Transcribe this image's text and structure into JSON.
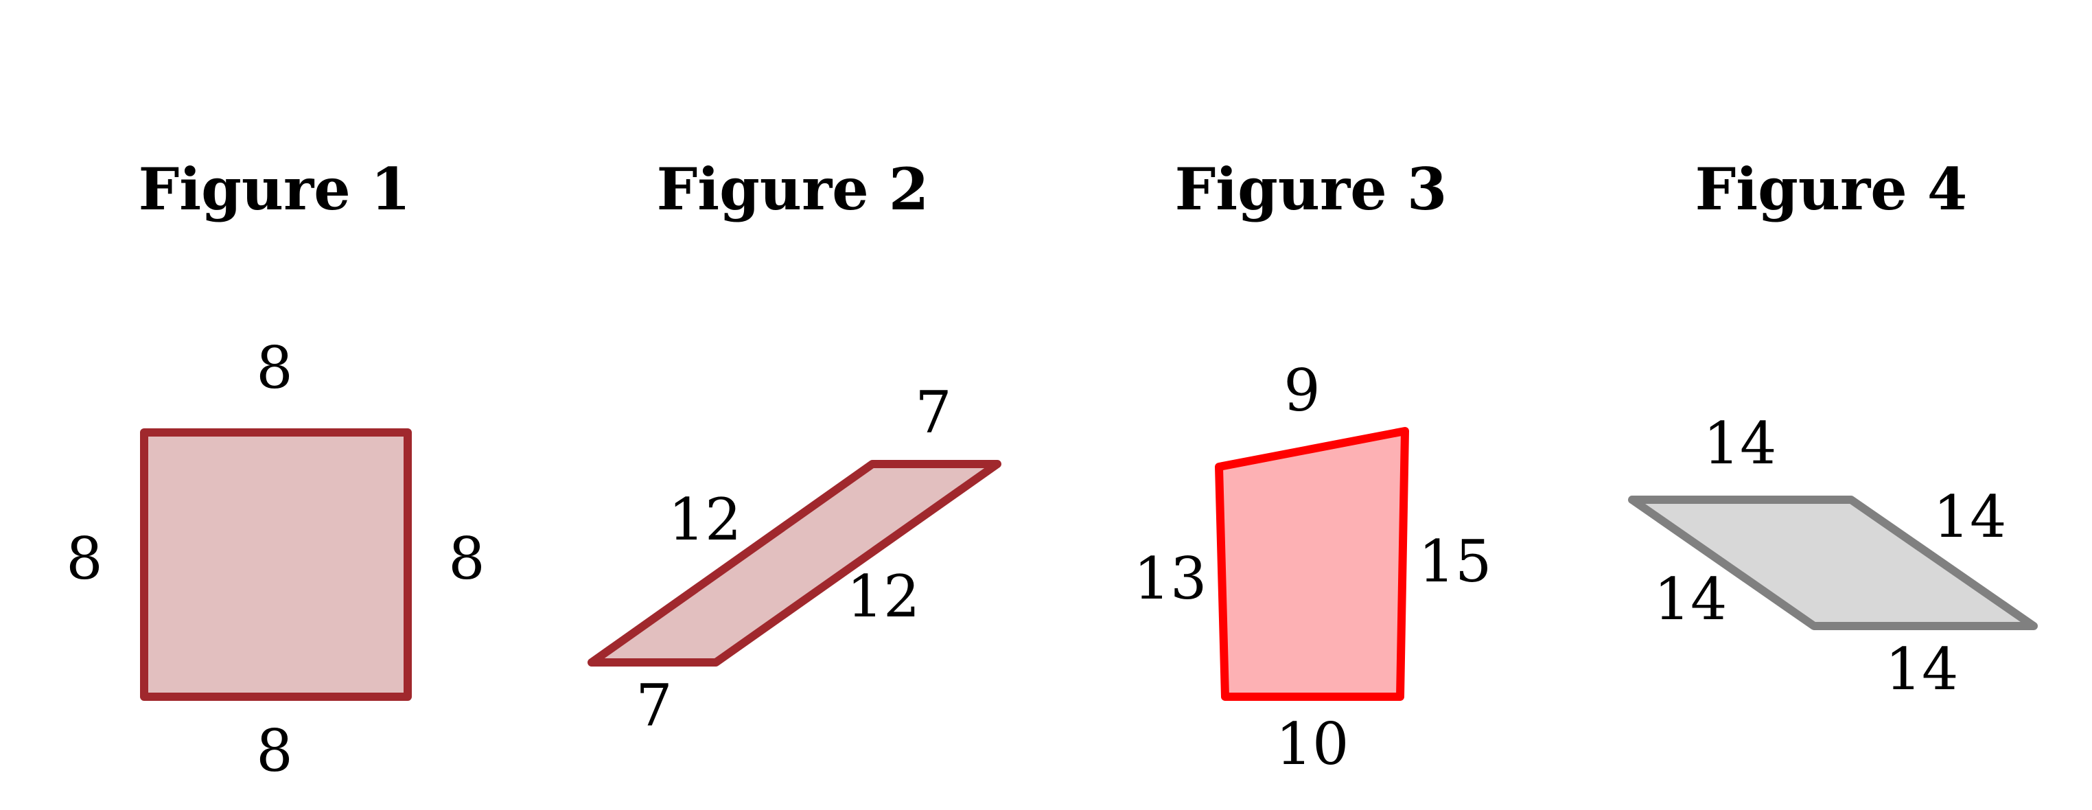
{
  "figures": [
    {
      "title": "Figure 1",
      "style": {
        "fill": "#e2bfbf",
        "stroke": "#a0282d"
      },
      "sides": {
        "top": "8",
        "left": "8",
        "right": "8",
        "bottom": "8"
      }
    },
    {
      "title": "Figure 2",
      "style": {
        "fill": "#e2bfbf",
        "stroke": "#a0282d"
      },
      "sides": {
        "top": "7",
        "upper_left": "12",
        "lower_right": "12",
        "bottom": "7"
      }
    },
    {
      "title": "Figure 3",
      "style": {
        "fill": "#fdb1b4",
        "stroke": "#ff0000"
      },
      "sides": {
        "top": "9",
        "left": "13",
        "right": "15",
        "bottom": "10"
      }
    },
    {
      "title": "Figure 4",
      "style": {
        "fill": "#d8d8d8",
        "stroke": "#808080"
      },
      "sides": {
        "top": "14",
        "upper_right": "14",
        "lower_left": "14",
        "bottom": "14"
      }
    }
  ]
}
